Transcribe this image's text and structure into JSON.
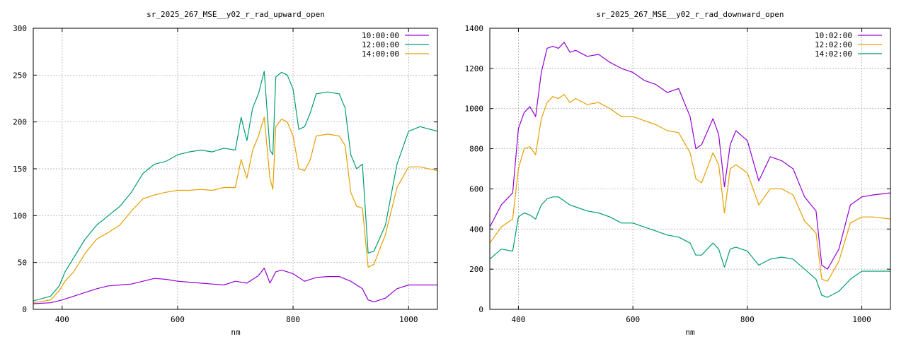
{
  "chart_data": [
    {
      "type": "line",
      "title": "sr_2025_267_MSE__y02_r_rad_upward_open",
      "xlabel": "nm",
      "ylabel": "",
      "xlim": [
        350,
        1050
      ],
      "ylim": [
        0,
        300
      ],
      "xticks": [
        400,
        600,
        800,
        1000
      ],
      "yticks": [
        0,
        50,
        100,
        150,
        200,
        250,
        300
      ],
      "grid": true,
      "legend_position": "top-right",
      "series": [
        {
          "name": "10:00:00",
          "color": "#9400d3",
          "x": [
            350,
            380,
            400,
            420,
            440,
            460,
            480,
            500,
            520,
            540,
            560,
            580,
            600,
            620,
            640,
            660,
            680,
            700,
            720,
            740,
            750,
            760,
            770,
            780,
            800,
            820,
            840,
            860,
            880,
            900,
            920,
            930,
            940,
            960,
            980,
            1000,
            1020,
            1050
          ],
          "y": [
            6,
            7,
            10,
            14,
            18,
            22,
            25,
            26,
            27,
            30,
            33,
            32,
            30,
            29,
            28,
            27,
            26,
            30,
            28,
            36,
            44,
            28,
            40,
            42,
            38,
            30,
            34,
            35,
            35,
            30,
            22,
            10,
            8,
            12,
            22,
            26,
            26,
            26
          ]
        },
        {
          "name": "12:00:00",
          "color": "#009e73",
          "x": [
            350,
            380,
            395,
            405,
            420,
            440,
            460,
            480,
            500,
            520,
            540,
            560,
            580,
            600,
            620,
            640,
            660,
            680,
            700,
            710,
            720,
            730,
            740,
            750,
            760,
            765,
            770,
            780,
            790,
            800,
            810,
            820,
            830,
            840,
            860,
            880,
            890,
            900,
            910,
            920,
            930,
            940,
            960,
            980,
            1000,
            1020,
            1050
          ],
          "y": [
            9,
            14,
            25,
            40,
            55,
            75,
            90,
            100,
            110,
            125,
            145,
            155,
            158,
            165,
            168,
            170,
            168,
            172,
            170,
            205,
            180,
            215,
            230,
            254,
            170,
            165,
            248,
            253,
            250,
            235,
            192,
            195,
            210,
            230,
            232,
            230,
            215,
            165,
            150,
            155,
            60,
            62,
            90,
            155,
            190,
            195,
            190
          ]
        },
        {
          "name": "14:00:00",
          "color": "#e69f00",
          "x": [
            350,
            380,
            395,
            405,
            420,
            440,
            460,
            480,
            500,
            520,
            540,
            560,
            580,
            600,
            620,
            640,
            660,
            680,
            700,
            710,
            720,
            730,
            740,
            750,
            760,
            765,
            770,
            780,
            790,
            800,
            810,
            820,
            830,
            840,
            860,
            880,
            890,
            900,
            910,
            920,
            930,
            940,
            960,
            980,
            1000,
            1020,
            1050
          ],
          "y": [
            7,
            10,
            20,
            30,
            40,
            60,
            75,
            82,
            90,
            105,
            118,
            122,
            125,
            127,
            127,
            128,
            127,
            130,
            130,
            160,
            140,
            170,
            185,
            205,
            140,
            128,
            195,
            203,
            200,
            185,
            150,
            148,
            160,
            185,
            187,
            185,
            175,
            125,
            110,
            108,
            45,
            48,
            80,
            130,
            152,
            152,
            148
          ]
        }
      ]
    },
    {
      "type": "line",
      "title": "sr_2025_267_MSE__y02_r_rad_downward_open",
      "xlabel": "nm",
      "ylabel": "",
      "xlim": [
        350,
        1050
      ],
      "ylim": [
        0,
        1400
      ],
      "xticks": [
        400,
        600,
        800,
        1000
      ],
      "yticks": [
        0,
        200,
        400,
        600,
        800,
        1000,
        1200,
        1400
      ],
      "grid": true,
      "legend_position": "top-right",
      "series": [
        {
          "name": "10:02:00",
          "color": "#9400d3",
          "x": [
            350,
            370,
            390,
            400,
            410,
            420,
            430,
            440,
            450,
            460,
            470,
            480,
            490,
            500,
            520,
            540,
            560,
            580,
            600,
            620,
            640,
            660,
            680,
            700,
            710,
            720,
            740,
            750,
            760,
            770,
            780,
            800,
            820,
            840,
            860,
            880,
            900,
            920,
            930,
            940,
            960,
            980,
            1000,
            1020,
            1050
          ],
          "y": [
            410,
            520,
            580,
            900,
            980,
            1010,
            960,
            1180,
            1300,
            1310,
            1300,
            1330,
            1280,
            1290,
            1260,
            1270,
            1230,
            1200,
            1180,
            1140,
            1120,
            1080,
            1100,
            960,
            800,
            820,
            950,
            870,
            610,
            820,
            890,
            840,
            640,
            760,
            740,
            700,
            560,
            490,
            220,
            200,
            300,
            520,
            560,
            570,
            580
          ]
        },
        {
          "name": "12:02:00",
          "color": "#e69f00",
          "x": [
            350,
            370,
            390,
            400,
            410,
            420,
            430,
            440,
            450,
            460,
            470,
            480,
            490,
            500,
            520,
            540,
            560,
            580,
            600,
            620,
            640,
            660,
            680,
            700,
            710,
            720,
            740,
            750,
            760,
            770,
            780,
            800,
            820,
            840,
            860,
            880,
            900,
            920,
            930,
            940,
            960,
            980,
            1000,
            1020,
            1050
          ],
          "y": [
            330,
            410,
            450,
            700,
            800,
            810,
            770,
            950,
            1030,
            1060,
            1050,
            1070,
            1030,
            1050,
            1020,
            1030,
            1000,
            960,
            960,
            940,
            920,
            890,
            880,
            780,
            650,
            630,
            780,
            720,
            480,
            700,
            720,
            680,
            520,
            600,
            600,
            570,
            440,
            380,
            150,
            140,
            240,
            430,
            460,
            460,
            450
          ]
        },
        {
          "name": "14:02:00",
          "color": "#009e73",
          "x": [
            350,
            370,
            390,
            400,
            410,
            420,
            430,
            440,
            450,
            460,
            470,
            480,
            490,
            500,
            520,
            540,
            560,
            580,
            600,
            620,
            640,
            660,
            680,
            700,
            710,
            720,
            740,
            750,
            760,
            770,
            780,
            800,
            820,
            840,
            860,
            880,
            900,
            920,
            930,
            940,
            960,
            980,
            1000,
            1020,
            1050
          ],
          "y": [
            250,
            300,
            290,
            460,
            480,
            470,
            450,
            520,
            550,
            560,
            560,
            540,
            520,
            510,
            490,
            480,
            460,
            430,
            430,
            410,
            390,
            370,
            360,
            330,
            270,
            270,
            330,
            300,
            210,
            300,
            310,
            290,
            220,
            250,
            260,
            250,
            200,
            150,
            70,
            60,
            90,
            150,
            190,
            190,
            190
          ]
        }
      ]
    }
  ]
}
